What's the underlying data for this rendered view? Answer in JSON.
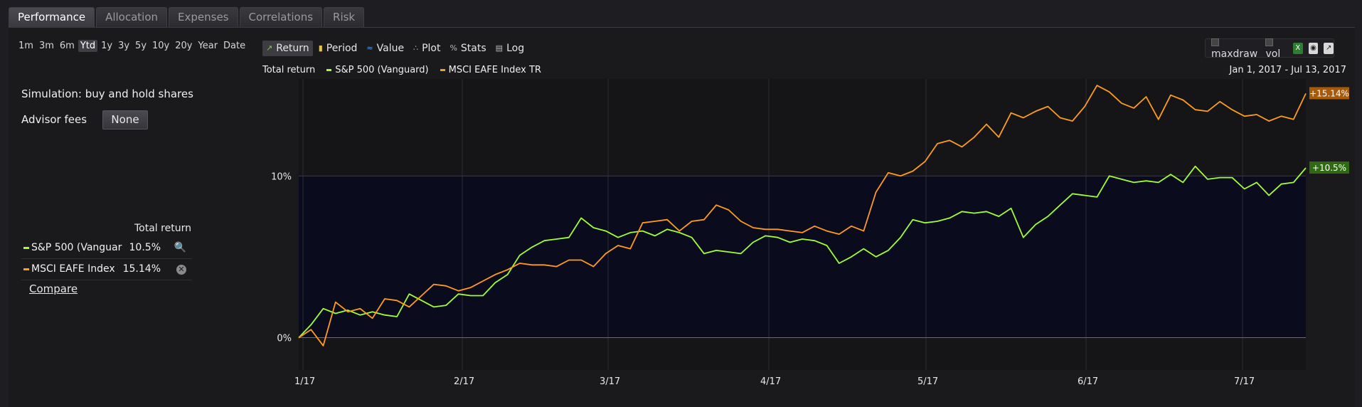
{
  "tabs": [
    "Performance",
    "Allocation",
    "Expenses",
    "Correlations",
    "Risk"
  ],
  "active_tab": 0,
  "periods": [
    "1m",
    "3m",
    "6m",
    "Ytd",
    "1y",
    "3y",
    "5y",
    "10y",
    "20y",
    "Year",
    "Date"
  ],
  "active_period": 3,
  "simulation_label": "Simulation: buy and hold shares",
  "advisor_fees_label": "Advisor fees",
  "advisor_fees_value": "None",
  "total_return_header": "Total return",
  "legend": [
    {
      "name": "S&P 500 (Vanguar",
      "value": "10.5%",
      "color": "#a0ff32",
      "action": "search-icon"
    },
    {
      "name": "MSCI EAFE Index",
      "value": "15.14%",
      "color": "#ff9c1a",
      "action": "remove-icon"
    }
  ],
  "compare_label": "Compare",
  "toolbar": [
    {
      "label": "Return",
      "icon": "line-chart-icon",
      "active": true
    },
    {
      "label": "Period",
      "icon": "bar-chart-icon",
      "active": false
    },
    {
      "label": "Value",
      "icon": "area-chart-icon",
      "active": false
    },
    {
      "label": "Plot",
      "icon": "scatter-icon",
      "active": false
    },
    {
      "label": "Stats",
      "icon": "percent-icon",
      "active": false
    },
    {
      "label": "Log",
      "icon": "log-icon",
      "active": false
    }
  ],
  "options": {
    "maxdraw": "maxdraw",
    "vol": "vol",
    "icons": [
      "excel-icon",
      "camera-icon",
      "popout-icon"
    ]
  },
  "chart_title": "Total return",
  "date_range": "Jan 1, 2017 - Jul 13, 2017",
  "colors": {
    "sp500": "#a0ff32",
    "eafe": "#ff9c1a"
  },
  "chart_data": {
    "type": "line",
    "x_ticks": [
      "1/17",
      "2/17",
      "3/17",
      "4/17",
      "5/17",
      "6/17",
      "7/17"
    ],
    "y_ticks": [
      "0%",
      "10%"
    ],
    "ylim": [
      -2,
      16
    ],
    "series": [
      {
        "name": "S&P 500 (Vanguard)",
        "end_label": "+10.5%",
        "values": [
          0,
          0.8,
          1.8,
          1.5,
          1.7,
          1.4,
          1.6,
          1.4,
          1.3,
          2.7,
          2.3,
          1.9,
          2.0,
          2.7,
          2.6,
          2.6,
          3.4,
          3.9,
          5.1,
          5.6,
          6.0,
          6.1,
          6.2,
          7.4,
          6.8,
          6.6,
          6.2,
          6.5,
          6.6,
          6.3,
          6.7,
          6.5,
          6.2,
          5.2,
          5.4,
          5.3,
          5.2,
          5.9,
          6.3,
          6.2,
          5.9,
          6.1,
          6.0,
          5.7,
          4.6,
          5.0,
          5.5,
          5.0,
          5.4,
          6.2,
          7.3,
          7.1,
          7.2,
          7.4,
          7.8,
          7.7,
          7.8,
          7.5,
          8.0,
          6.2,
          7.0,
          7.5,
          8.2,
          8.9,
          8.8,
          8.7,
          10.0,
          9.8,
          9.6,
          9.7,
          9.6,
          10.1,
          9.6,
          10.6,
          9.8,
          9.9,
          9.9,
          9.2,
          9.6,
          8.8,
          9.5,
          9.6,
          10.5
        ]
      },
      {
        "name": "MSCI EAFE Index TR",
        "end_label": "+15.14%",
        "values": [
          0,
          0.5,
          -0.5,
          2.2,
          1.6,
          1.8,
          1.2,
          2.4,
          2.3,
          1.9,
          2.6,
          3.3,
          3.2,
          2.9,
          3.1,
          3.5,
          3.9,
          4.2,
          4.6,
          4.5,
          4.5,
          4.4,
          4.8,
          4.8,
          4.4,
          5.2,
          5.7,
          5.5,
          7.1,
          7.2,
          7.3,
          6.6,
          7.2,
          7.3,
          8.2,
          7.9,
          7.2,
          6.8,
          6.7,
          6.7,
          6.6,
          6.5,
          6.9,
          6.6,
          6.4,
          6.9,
          6.6,
          9.0,
          10.2,
          10.0,
          10.3,
          10.9,
          12.0,
          12.2,
          11.8,
          12.4,
          13.2,
          12.4,
          13.9,
          13.6,
          14.0,
          14.3,
          13.6,
          13.4,
          14.3,
          15.6,
          15.2,
          14.5,
          14.2,
          14.9,
          13.5,
          15.0,
          14.7,
          14.1,
          14.0,
          14.6,
          14.1,
          13.7,
          13.8,
          13.4,
          13.7,
          13.5,
          15.1
        ]
      }
    ]
  }
}
